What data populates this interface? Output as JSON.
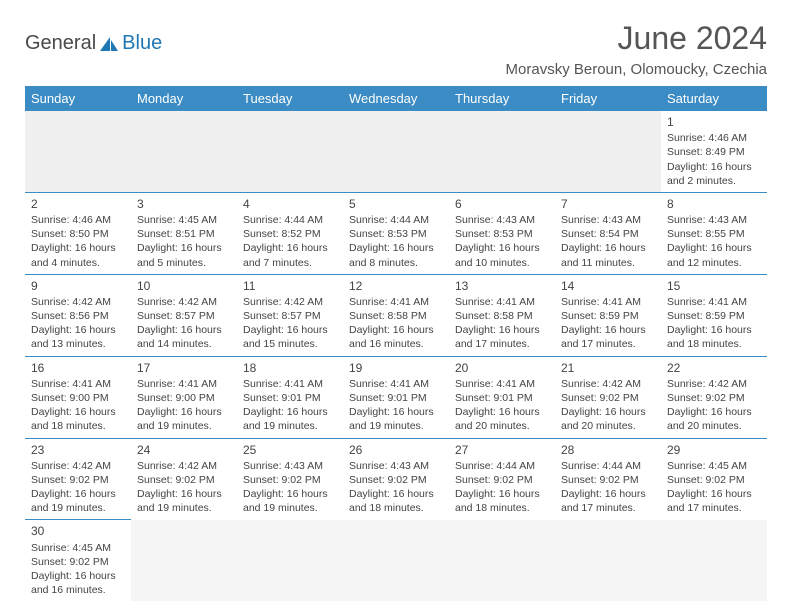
{
  "logo": {
    "text1": "General",
    "text2": "Blue"
  },
  "title": "June 2024",
  "location": "Moravsky Beroun, Olomoucky, Czechia",
  "weekdays": [
    "Sunday",
    "Monday",
    "Tuesday",
    "Wednesday",
    "Thursday",
    "Friday",
    "Saturday"
  ],
  "colors": {
    "header_bg": "#3b8bc4",
    "header_fg": "#ffffff",
    "rule": "#3b8bc4",
    "text": "#444444",
    "logo_blue": "#1f77b4"
  },
  "weeks": [
    [
      null,
      null,
      null,
      null,
      null,
      null,
      {
        "n": "1",
        "sr": "4:46 AM",
        "ss": "8:49 PM",
        "dl": "16 hours and 2 minutes."
      }
    ],
    [
      {
        "n": "2",
        "sr": "4:46 AM",
        "ss": "8:50 PM",
        "dl": "16 hours and 4 minutes."
      },
      {
        "n": "3",
        "sr": "4:45 AM",
        "ss": "8:51 PM",
        "dl": "16 hours and 5 minutes."
      },
      {
        "n": "4",
        "sr": "4:44 AM",
        "ss": "8:52 PM",
        "dl": "16 hours and 7 minutes."
      },
      {
        "n": "5",
        "sr": "4:44 AM",
        "ss": "8:53 PM",
        "dl": "16 hours and 8 minutes."
      },
      {
        "n": "6",
        "sr": "4:43 AM",
        "ss": "8:53 PM",
        "dl": "16 hours and 10 minutes."
      },
      {
        "n": "7",
        "sr": "4:43 AM",
        "ss": "8:54 PM",
        "dl": "16 hours and 11 minutes."
      },
      {
        "n": "8",
        "sr": "4:43 AM",
        "ss": "8:55 PM",
        "dl": "16 hours and 12 minutes."
      }
    ],
    [
      {
        "n": "9",
        "sr": "4:42 AM",
        "ss": "8:56 PM",
        "dl": "16 hours and 13 minutes."
      },
      {
        "n": "10",
        "sr": "4:42 AM",
        "ss": "8:57 PM",
        "dl": "16 hours and 14 minutes."
      },
      {
        "n": "11",
        "sr": "4:42 AM",
        "ss": "8:57 PM",
        "dl": "16 hours and 15 minutes."
      },
      {
        "n": "12",
        "sr": "4:41 AM",
        "ss": "8:58 PM",
        "dl": "16 hours and 16 minutes."
      },
      {
        "n": "13",
        "sr": "4:41 AM",
        "ss": "8:58 PM",
        "dl": "16 hours and 17 minutes."
      },
      {
        "n": "14",
        "sr": "4:41 AM",
        "ss": "8:59 PM",
        "dl": "16 hours and 17 minutes."
      },
      {
        "n": "15",
        "sr": "4:41 AM",
        "ss": "8:59 PM",
        "dl": "16 hours and 18 minutes."
      }
    ],
    [
      {
        "n": "16",
        "sr": "4:41 AM",
        "ss": "9:00 PM",
        "dl": "16 hours and 18 minutes."
      },
      {
        "n": "17",
        "sr": "4:41 AM",
        "ss": "9:00 PM",
        "dl": "16 hours and 19 minutes."
      },
      {
        "n": "18",
        "sr": "4:41 AM",
        "ss": "9:01 PM",
        "dl": "16 hours and 19 minutes."
      },
      {
        "n": "19",
        "sr": "4:41 AM",
        "ss": "9:01 PM",
        "dl": "16 hours and 19 minutes."
      },
      {
        "n": "20",
        "sr": "4:41 AM",
        "ss": "9:01 PM",
        "dl": "16 hours and 20 minutes."
      },
      {
        "n": "21",
        "sr": "4:42 AM",
        "ss": "9:02 PM",
        "dl": "16 hours and 20 minutes."
      },
      {
        "n": "22",
        "sr": "4:42 AM",
        "ss": "9:02 PM",
        "dl": "16 hours and 20 minutes."
      }
    ],
    [
      {
        "n": "23",
        "sr": "4:42 AM",
        "ss": "9:02 PM",
        "dl": "16 hours and 19 minutes."
      },
      {
        "n": "24",
        "sr": "4:42 AM",
        "ss": "9:02 PM",
        "dl": "16 hours and 19 minutes."
      },
      {
        "n": "25",
        "sr": "4:43 AM",
        "ss": "9:02 PM",
        "dl": "16 hours and 19 minutes."
      },
      {
        "n": "26",
        "sr": "4:43 AM",
        "ss": "9:02 PM",
        "dl": "16 hours and 18 minutes."
      },
      {
        "n": "27",
        "sr": "4:44 AM",
        "ss": "9:02 PM",
        "dl": "16 hours and 18 minutes."
      },
      {
        "n": "28",
        "sr": "4:44 AM",
        "ss": "9:02 PM",
        "dl": "16 hours and 17 minutes."
      },
      {
        "n": "29",
        "sr": "4:45 AM",
        "ss": "9:02 PM",
        "dl": "16 hours and 17 minutes."
      }
    ],
    [
      {
        "n": "30",
        "sr": "4:45 AM",
        "ss": "9:02 PM",
        "dl": "16 hours and 16 minutes."
      },
      null,
      null,
      null,
      null,
      null,
      null
    ]
  ],
  "labels": {
    "sunrise": "Sunrise:",
    "sunset": "Sunset:",
    "daylight": "Daylight:"
  }
}
